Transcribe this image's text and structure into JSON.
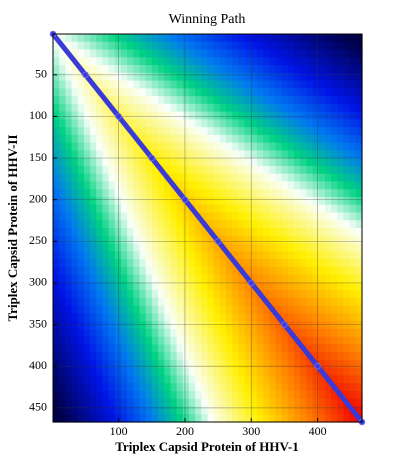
{
  "chart_data": {
    "type": "line",
    "title": "Winning Path",
    "x_label": "Triplex Capsid Protein of HHV-1",
    "y_label": "Triplex Capsid Protein of HHV-II",
    "xlim": [
      1,
      467
    ],
    "ylim": [
      1,
      467
    ],
    "y_inverted": true,
    "xticks": [
      100,
      200,
      300,
      400
    ],
    "yticks": [
      50,
      100,
      150,
      200,
      250,
      300,
      350,
      400,
      450
    ],
    "grid": true,
    "series": [
      {
        "name": "Winning Path",
        "color": "#3a3ad8",
        "x": [
          1,
          50,
          100,
          150,
          200,
          250,
          300,
          350,
          400,
          467
        ],
        "values": [
          1,
          50,
          100,
          150,
          200,
          250,
          300,
          350,
          400,
          467
        ]
      }
    ]
  }
}
